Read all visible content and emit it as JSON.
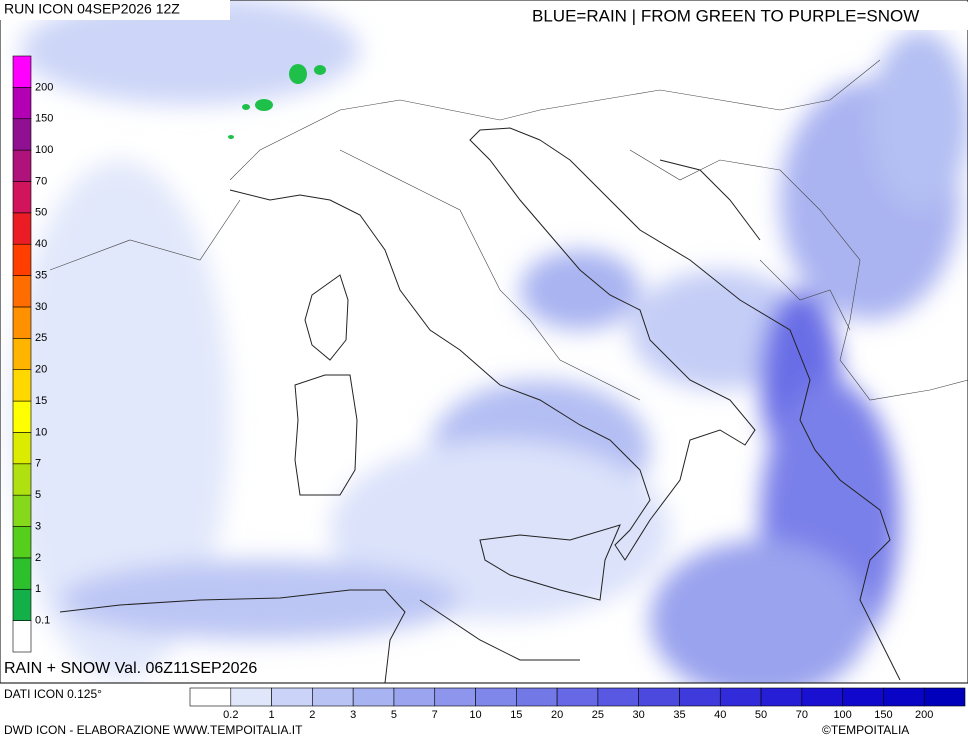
{
  "header": {
    "run": "RUN ICON 04SEP2026 12Z",
    "legend_title": "BLUE=RAIN | FROM GREEN TO PURPLE=SNOW"
  },
  "map": {
    "valid": "RAIN + SNOW Val. 06Z11SEP2026"
  },
  "snow_scale": {
    "labels": [
      "0.1",
      "1",
      "2",
      "3",
      "5",
      "7",
      "10",
      "15",
      "20",
      "25",
      "30",
      "35",
      "40",
      "50",
      "70",
      "100",
      "150",
      "200"
    ],
    "colors": [
      "#ffffff",
      "#13b04a",
      "#2cc02c",
      "#55cf1c",
      "#86d81a",
      "#b0e010",
      "#dcec00",
      "#ffff00",
      "#ffd800",
      "#ffb400",
      "#ff9000",
      "#ff6c00",
      "#ff3e00",
      "#ec1c24",
      "#d2145c",
      "#b0127c",
      "#901092",
      "#b400b4",
      "#ff00ff"
    ]
  },
  "rain_scale": {
    "labels": [
      "0.2",
      "1",
      "2",
      "3",
      "5",
      "7",
      "10",
      "15",
      "20",
      "25",
      "30",
      "35",
      "40",
      "50",
      "70",
      "100",
      "150",
      "200"
    ],
    "colors": [
      "#ffffff",
      "#e0e7fb",
      "#cbd4f8",
      "#b9c3f4",
      "#a8b3f1",
      "#9aa4ef",
      "#8d95ec",
      "#8087ea",
      "#7378e7",
      "#6668e5",
      "#5958e2",
      "#4c49df",
      "#3f3adc",
      "#322bd9",
      "#261dd6",
      "#1a10d2",
      "#1108cd",
      "#0a04c6",
      "#0000bc"
    ]
  },
  "footer": {
    "source": "DATI ICON 0.125°",
    "credit": "DWD ICON - ELABORAZIONE WWW.TEMPOITALIA.IT",
    "copyright": "©TEMPOITALIA"
  }
}
